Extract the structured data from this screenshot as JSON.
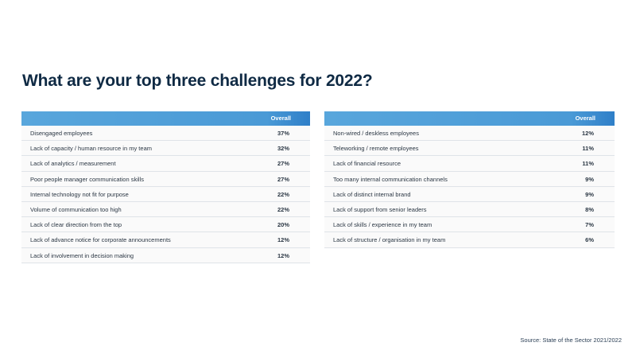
{
  "title": "What are your top three challenges for 2022?",
  "left_table": {
    "header": "Overall",
    "rows": [
      {
        "label": "Disengaged employees",
        "value": "37%"
      },
      {
        "label": "Lack of capacity / human resource in my team",
        "value": "32%"
      },
      {
        "label": "Lack of analytics / measurement",
        "value": "27%"
      },
      {
        "label": "Poor people manager communication skills",
        "value": "27%"
      },
      {
        "label": "Internal technology not fit for purpose",
        "value": "22%"
      },
      {
        "label": "Volume of communication too high",
        "value": "22%"
      },
      {
        "label": "Lack of clear direction from the top",
        "value": "20%"
      },
      {
        "label": "Lack of advance notice for corporate announcements",
        "value": "12%"
      },
      {
        "label": "Lack of involvement in decision making",
        "value": "12%"
      }
    ]
  },
  "right_table": {
    "header": "Overall",
    "rows": [
      {
        "label": "Non-wired / deskless employees",
        "value": "12%"
      },
      {
        "label": "Teleworking / remote employees",
        "value": "11%"
      },
      {
        "label": "Lack of financial resource",
        "value": "11%"
      },
      {
        "label": "Too many internal communication channels",
        "value": "9%"
      },
      {
        "label": "Lack of distinct internal brand",
        "value": "9%"
      },
      {
        "label": "Lack of support from senior leaders",
        "value": "8%"
      },
      {
        "label": "Lack of skills / experience in my team",
        "value": "7%"
      },
      {
        "label": "Lack of structure / organisation in my team",
        "value": "6%"
      }
    ]
  },
  "source": "Source: State of the Sector 2021/2022",
  "colors": {
    "header": "#4a9ad6",
    "title": "#0f2a44"
  }
}
